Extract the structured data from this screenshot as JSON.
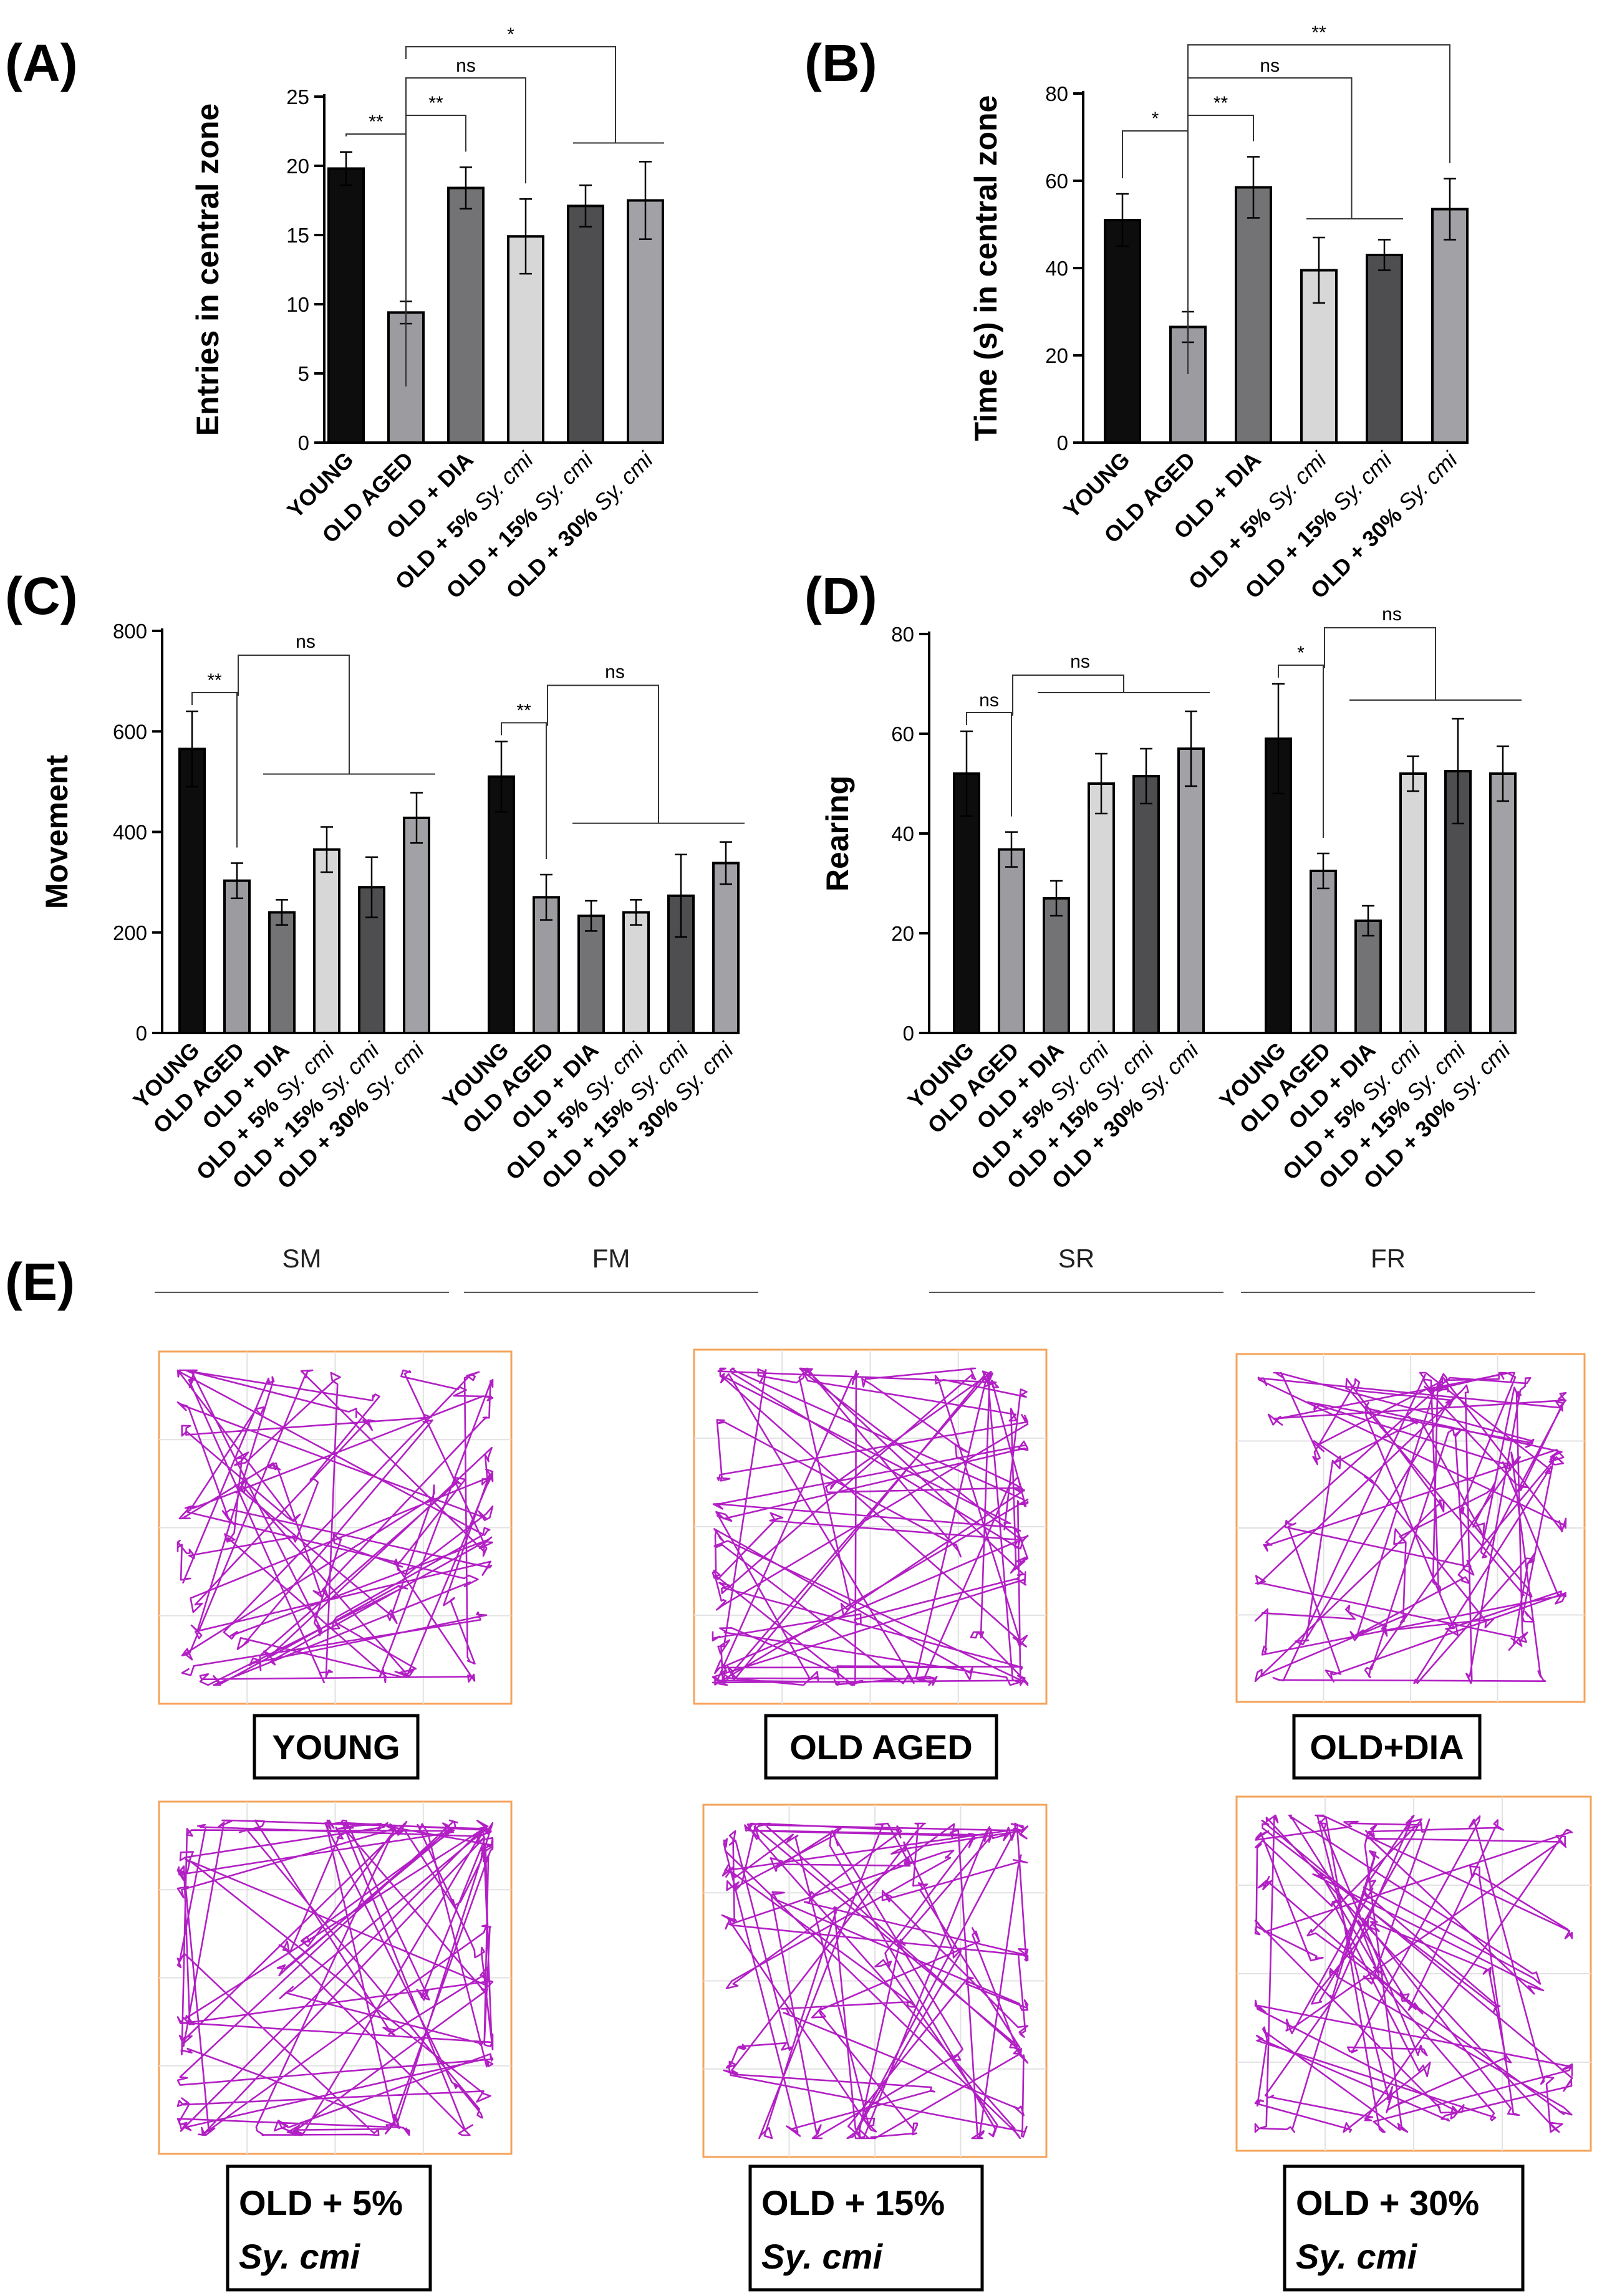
{
  "panel_labels": {
    "a": "(A)",
    "b": "(B)",
    "c": "(C)",
    "d": "(D)",
    "e": "(E)"
  },
  "groups": [
    {
      "name": "YOUNG",
      "suffix": "",
      "color": "#0d0d0d"
    },
    {
      "name": "OLD AGED",
      "suffix": "",
      "color": "#9c9ca0"
    },
    {
      "name": "OLD + DIA",
      "suffix": "",
      "color": "#737376"
    },
    {
      "name": "OLD + 5%",
      "suffix": "Sy. cmi",
      "color": "#d7d7d7"
    },
    {
      "name": "OLD + 15%",
      "suffix": "Sy. cmi",
      "color": "#4e4e50"
    },
    {
      "name": "OLD + 30%",
      "suffix": "Sy. cmi",
      "color": "#a2a2a6"
    }
  ],
  "chart_data": [
    {
      "id": "A",
      "type": "bar",
      "ylabel": "Entries in central zone",
      "ylim": [
        0,
        25
      ],
      "yticks": [
        0,
        5,
        10,
        15,
        20,
        25
      ],
      "sections": [
        {
          "name": "",
          "values": [
            19.8,
            9.4,
            18.4,
            14.9,
            17.1,
            17.5
          ],
          "errors": [
            1.2,
            0.8,
            1.5,
            2.7,
            1.5,
            2.8
          ]
        }
      ],
      "significance": [
        {
          "label": "**",
          "from": "YOUNG",
          "to": "OLD AGED"
        },
        {
          "label": "**",
          "from": "OLD AGED",
          "to": "OLD + DIA"
        },
        {
          "label": "ns",
          "from": "OLD AGED",
          "to": "OLD + 5% Sy. cmi"
        },
        {
          "label": "*",
          "from": "OLD AGED",
          "to": "OLD + 15% / OLD + 30% Sy. cmi"
        }
      ]
    },
    {
      "id": "B",
      "type": "bar",
      "ylabel": "Time (s) in central zone",
      "ylim": [
        0,
        80
      ],
      "yticks": [
        0,
        20,
        40,
        60,
        80
      ],
      "sections": [
        {
          "name": "",
          "values": [
            51,
            26.5,
            58.5,
            39.5,
            43,
            53.5
          ],
          "errors": [
            6,
            3.5,
            7,
            7.5,
            3.5,
            7
          ]
        }
      ],
      "significance": [
        {
          "label": "*",
          "from": "YOUNG",
          "to": "OLD AGED"
        },
        {
          "label": "**",
          "from": "OLD AGED",
          "to": "OLD + DIA"
        },
        {
          "label": "ns",
          "from": "OLD AGED",
          "to": "OLD + 5% / 15% Sy. cmi"
        },
        {
          "label": "**",
          "from": "OLD AGED",
          "to": "OLD + 30% Sy. cmi"
        }
      ]
    },
    {
      "id": "C",
      "type": "bar",
      "ylabel": "Movement",
      "ylim": [
        0,
        800
      ],
      "yticks": [
        0,
        200,
        400,
        600,
        800
      ],
      "sections": [
        {
          "name": "SM",
          "values": [
            565,
            303,
            240,
            365,
            290,
            428
          ],
          "errors": [
            75,
            35,
            25,
            45,
            60,
            50
          ]
        },
        {
          "name": "FM",
          "values": [
            510,
            270,
            233,
            240,
            273,
            338
          ],
          "errors": [
            70,
            45,
            30,
            25,
            82,
            42
          ]
        }
      ],
      "significance": [
        {
          "section": "SM",
          "label": "**",
          "from": "YOUNG",
          "to": "OLD AGED"
        },
        {
          "section": "SM",
          "label": "ns",
          "from": "OLD AGED",
          "to": "treated groups"
        },
        {
          "section": "FM",
          "label": "**",
          "from": "YOUNG",
          "to": "OLD AGED"
        },
        {
          "section": "FM",
          "label": "ns",
          "from": "OLD AGED",
          "to": "treated groups"
        }
      ]
    },
    {
      "id": "D",
      "type": "bar",
      "ylabel": "Rearing",
      "ylim": [
        0,
        80
      ],
      "yticks": [
        0,
        20,
        40,
        60,
        80
      ],
      "sections": [
        {
          "name": "SR",
          "values": [
            52,
            36.8,
            27,
            50,
            51.5,
            57
          ],
          "errors": [
            8.5,
            3.5,
            3.5,
            6,
            5.5,
            7.5
          ]
        },
        {
          "name": "FR",
          "values": [
            59,
            32.5,
            22.5,
            52,
            52.5,
            52
          ],
          "errors": [
            11,
            3.5,
            3,
            3.5,
            10.5,
            5.5
          ]
        }
      ],
      "significance": [
        {
          "section": "SR",
          "label": "ns",
          "from": "YOUNG",
          "to": "OLD AGED"
        },
        {
          "section": "SR",
          "label": "ns",
          "from": "OLD AGED",
          "to": "treated groups"
        },
        {
          "section": "FR",
          "label": "*",
          "from": "YOUNG",
          "to": "OLD AGED"
        },
        {
          "section": "FR",
          "label": "ns",
          "from": "OLD AGED",
          "to": "treated groups"
        }
      ]
    }
  ],
  "tracks": {
    "line_color": "#b21fc4",
    "frame_color": "#f4a35a",
    "items": [
      {
        "label": "YOUNG",
        "sublabel": "",
        "pattern": "cross"
      },
      {
        "label": "OLD AGED",
        "sublabel": "",
        "pattern": "perimeter"
      },
      {
        "label": "OLD+DIA",
        "sublabel": "",
        "pattern": "cross"
      },
      {
        "label": "OLD + 5%",
        "sublabel": "Sy. cmi",
        "pattern": "perimeter"
      },
      {
        "label": "OLD + 15%",
        "sublabel": "Sy. cmi",
        "pattern": "mixed"
      },
      {
        "label": "OLD + 30%",
        "sublabel": "Sy. cmi",
        "pattern": "cross"
      }
    ]
  }
}
